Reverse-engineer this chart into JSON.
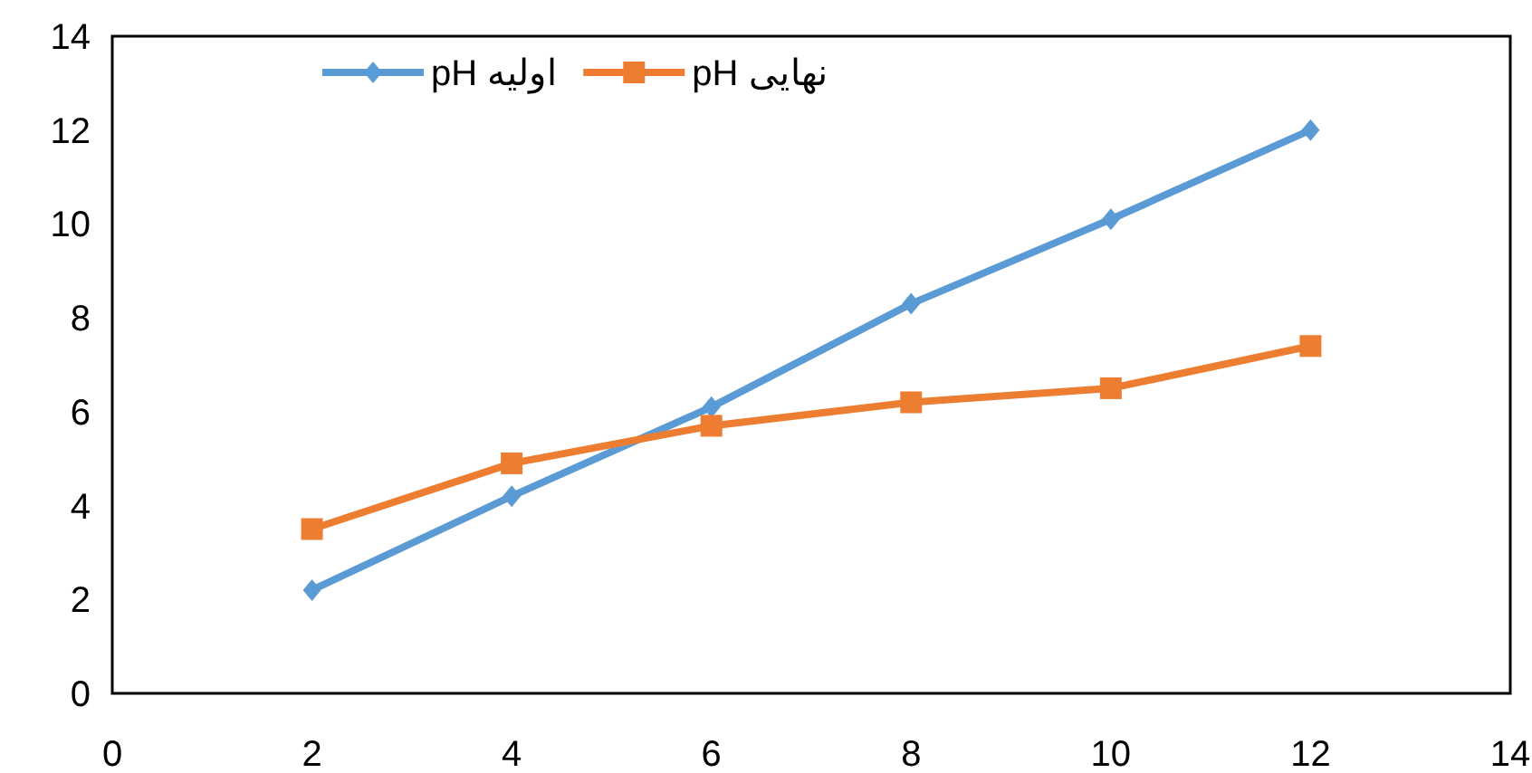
{
  "chart_data": {
    "type": "line",
    "x": [
      2,
      4,
      6,
      8,
      10,
      12
    ],
    "series": [
      {
        "name": "pH اولیه",
        "color": "#5b9bd5",
        "marker": "diamond",
        "values": [
          2.2,
          4.2,
          6.1,
          8.3,
          10.1,
          12.0
        ]
      },
      {
        "name": "pH نهایی",
        "color": "#ed7d31",
        "marker": "square",
        "values": [
          3.5,
          4.9,
          5.7,
          6.2,
          6.5,
          7.4
        ]
      }
    ],
    "xlim": [
      0,
      14
    ],
    "xticks": [
      0,
      2,
      4,
      6,
      8,
      10,
      12,
      14
    ],
    "ylim": [
      0,
      14
    ],
    "yticks": [
      0,
      2,
      4,
      6,
      8,
      10,
      12,
      14
    ],
    "grid": false,
    "legend": "top",
    "line_style": "solid"
  }
}
